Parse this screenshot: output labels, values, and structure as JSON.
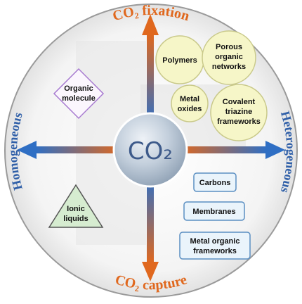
{
  "labels": {
    "top": "CO₂ fixation",
    "bottom": "CO₂ capture",
    "left": "Homogeneous",
    "right": "Heterogeneous",
    "center": "CO₂"
  },
  "homogeneous": {
    "diamond": [
      "Organic",
      "molecule"
    ],
    "triangle": [
      "Ionic",
      "liquids"
    ]
  },
  "fixation_circles": [
    {
      "lines": [
        "Polymers"
      ]
    },
    {
      "lines": [
        "Porous",
        "organic",
        "networks"
      ]
    },
    {
      "lines": [
        "Metal",
        "oxides"
      ]
    },
    {
      "lines": [
        "Covalent",
        "triazine",
        "frameworks"
      ]
    }
  ],
  "capture_boxes": [
    {
      "lines": [
        "Carbons"
      ]
    },
    {
      "lines": [
        "Membranes"
      ]
    },
    {
      "lines": [
        "Metal organic",
        "frameworks"
      ]
    }
  ],
  "colors": {
    "orange": "#e0681e",
    "blue": "#2f6fc4",
    "circle_fill": "#f6f6c8",
    "circle_stroke": "#c9c98a",
    "diamond_stroke": "#a77ad0",
    "triangle_fill": "#d6ecd0",
    "box_fill": "#eaf4fb",
    "box_stroke": "#5b8fc2"
  }
}
